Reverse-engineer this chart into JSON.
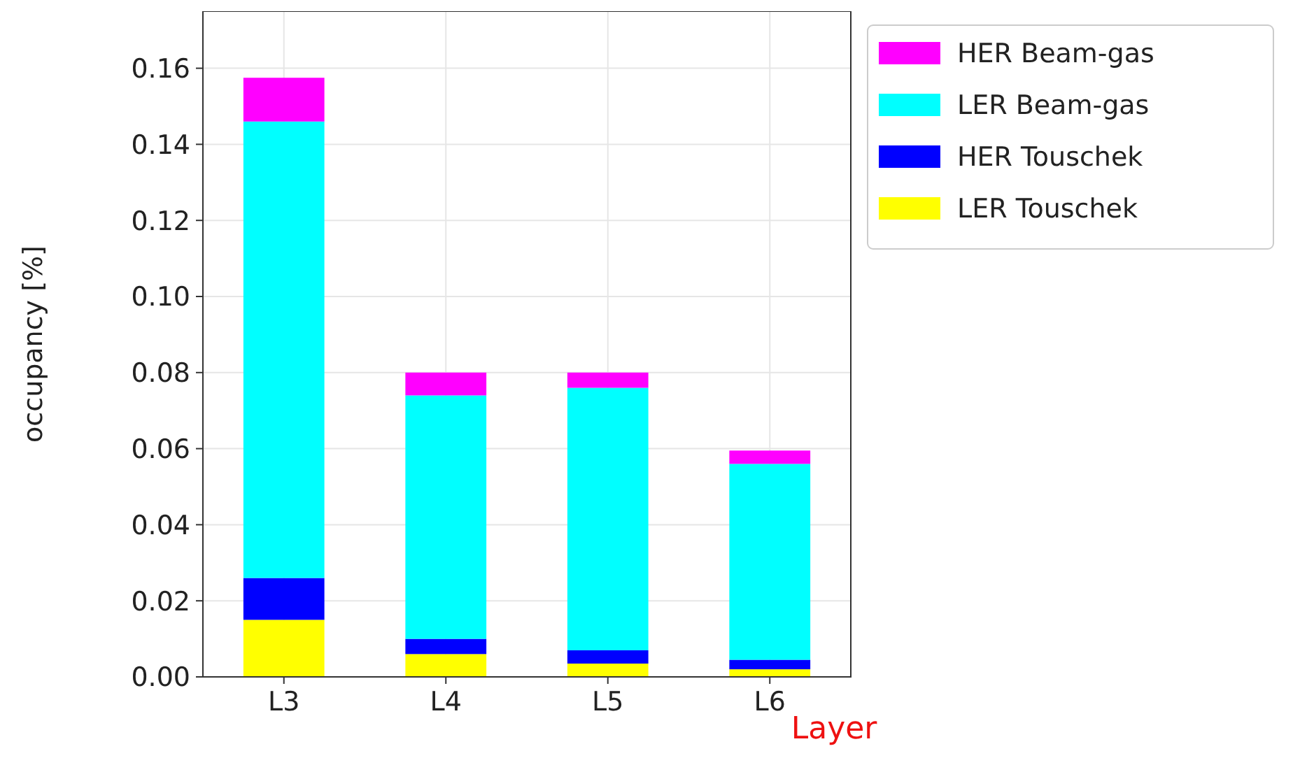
{
  "chart_data": {
    "type": "bar",
    "stacked": true,
    "xlabel": "Layer",
    "ylabel": "occupancy [%]",
    "categories": [
      "L3",
      "L4",
      "L5",
      "L6"
    ],
    "series": [
      {
        "name": "LER Touschek",
        "color": "#ffff00",
        "values": [
          0.015,
          0.006,
          0.0035,
          0.002
        ]
      },
      {
        "name": "HER Touschek",
        "color": "#0000ff",
        "values": [
          0.011,
          0.004,
          0.0035,
          0.0025
        ]
      },
      {
        "name": "LER Beam-gas",
        "color": "#00ffff",
        "values": [
          0.12,
          0.064,
          0.069,
          0.0515
        ]
      },
      {
        "name": "HER Beam-gas",
        "color": "#ff00ff",
        "values": [
          0.0115,
          0.006,
          0.004,
          0.0035
        ]
      }
    ],
    "ylim": [
      0,
      0.175
    ],
    "yticks": [
      {
        "value": 0,
        "label": "0.00"
      },
      {
        "value": 0.02,
        "label": "0.02"
      },
      {
        "value": 0.04,
        "label": "0.04"
      },
      {
        "value": 0.06,
        "label": "0.06"
      },
      {
        "value": 0.08,
        "label": "0.08"
      },
      {
        "value": 0.1,
        "label": "0.10"
      },
      {
        "value": 0.12,
        "label": "0.12"
      },
      {
        "value": 0.14,
        "label": "0.14"
      },
      {
        "value": 0.16,
        "label": "0.16"
      }
    ],
    "grid": true,
    "legend": "top right"
  }
}
